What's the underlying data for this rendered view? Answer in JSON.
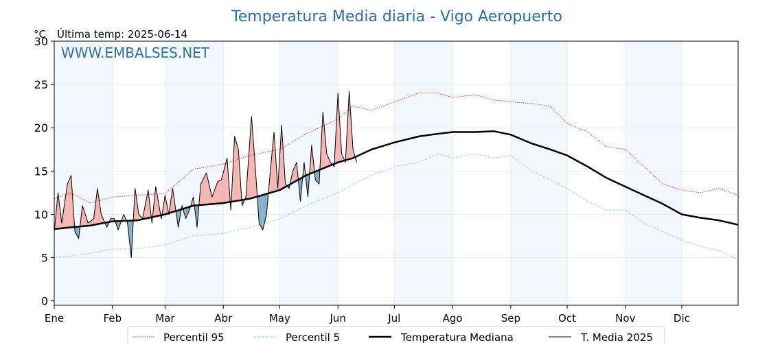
{
  "chart_data": {
    "type": "line",
    "title": "Temperatura Media diaria - Vigo Aeropuerto",
    "unit_label": "°C",
    "last_temp_label": "Última temp: 2025-06-14",
    "watermark": "WWW.EMBALSES.NET",
    "ylim": [
      -0.5,
      30
    ],
    "yticks": [
      0,
      5,
      10,
      15,
      20,
      25,
      30
    ],
    "xlim": [
      1,
      365
    ],
    "months": [
      {
        "label": "Ene",
        "day": 1
      },
      {
        "label": "Feb",
        "day": 32
      },
      {
        "label": "Mar",
        "day": 60
      },
      {
        "label": "Abr",
        "day": 91
      },
      {
        "label": "May",
        "day": 121
      },
      {
        "label": "Jun",
        "day": 152
      },
      {
        "label": "Jul",
        "day": 182
      },
      {
        "label": "Ago",
        "day": 213
      },
      {
        "label": "Sep",
        "day": 244
      },
      {
        "label": "Oct",
        "day": 274
      },
      {
        "label": "Nov",
        "day": 305
      },
      {
        "label": "Dic",
        "day": 335
      }
    ],
    "grid": true,
    "legend_position": "bottom",
    "series": [
      {
        "name": "Percentil 95",
        "color": "#e8322b",
        "style": "dotted",
        "x": [
          1,
          10,
          20,
          32,
          45,
          60,
          75,
          91,
          105,
          121,
          135,
          152,
          160,
          170,
          182,
          195,
          205,
          213,
          225,
          235,
          244,
          255,
          265,
          274,
          285,
          295,
          305,
          315,
          325,
          335,
          345,
          355,
          365
        ],
        "values": [
          11.8,
          12.5,
          11.3,
          12,
          12.2,
          12.4,
          15.2,
          15.8,
          16.8,
          17.5,
          19.3,
          21,
          22.5,
          22,
          23,
          24,
          24,
          23.5,
          23.8,
          23.2,
          23,
          22.8,
          22.5,
          20.5,
          19.5,
          17.8,
          17.5,
          15.5,
          13.5,
          12.8,
          12.5,
          13,
          12.2
        ]
      },
      {
        "name": "Percentil 5",
        "color": "#a8d4e4",
        "style": "dashed",
        "x": [
          1,
          10,
          20,
          32,
          45,
          60,
          75,
          91,
          105,
          121,
          135,
          152,
          160,
          170,
          182,
          195,
          205,
          213,
          225,
          235,
          244,
          255,
          265,
          274,
          285,
          295,
          305,
          315,
          325,
          335,
          345,
          355,
          365
        ],
        "values": [
          5,
          5.2,
          5.5,
          6,
          6,
          6.5,
          7.5,
          7.8,
          8.5,
          9.5,
          11,
          12.5,
          13.5,
          14.5,
          15.5,
          16,
          17,
          16.5,
          17,
          16.5,
          16.8,
          15,
          14,
          13,
          11.5,
          10.5,
          10.5,
          9,
          8,
          7,
          6.3,
          5.8,
          4.8
        ]
      },
      {
        "name": "Temperatura Mediana",
        "color": "#000000",
        "style": "solid-thick",
        "x": [
          1,
          10,
          20,
          32,
          45,
          60,
          75,
          91,
          105,
          121,
          135,
          152,
          160,
          170,
          182,
          195,
          205,
          213,
          225,
          235,
          244,
          255,
          265,
          274,
          285,
          295,
          305,
          315,
          325,
          335,
          345,
          355,
          365
        ],
        "values": [
          8.3,
          8.5,
          8.7,
          9.2,
          9.3,
          10,
          11,
          11.3,
          11.8,
          12.8,
          14.5,
          16,
          16.5,
          17.5,
          18.3,
          19,
          19.3,
          19.5,
          19.5,
          19.6,
          19.2,
          18.2,
          17.5,
          16.8,
          15.5,
          14.2,
          13.2,
          12.2,
          11.2,
          10,
          9.6,
          9.3,
          8.8
        ]
      },
      {
        "name": "T. Media 2025",
        "color": "#000000",
        "style": "solid-thin",
        "x": [
          1,
          3,
          5,
          8,
          10,
          12,
          14,
          16,
          19,
          22,
          24,
          26,
          29,
          31,
          33,
          35,
          38,
          40,
          42,
          44,
          46,
          48,
          51,
          53,
          55,
          58,
          60,
          62,
          64,
          67,
          69,
          71,
          73,
          75,
          77,
          79,
          82,
          85,
          88,
          90,
          93,
          95,
          97,
          99,
          101,
          103,
          106,
          108,
          110,
          112,
          114,
          116,
          118,
          120,
          122,
          124,
          126,
          128,
          130,
          132,
          134,
          136,
          138,
          140,
          142,
          144,
          146,
          148,
          150,
          152,
          154,
          156,
          158,
          160,
          162
        ],
        "values": [
          8,
          12.5,
          9,
          13.5,
          14.5,
          8,
          7.2,
          11,
          9,
          9.5,
          13,
          10,
          8.5,
          9.5,
          9.5,
          8.2,
          10,
          9,
          5,
          13,
          10,
          9.5,
          12.8,
          9,
          13.2,
          9.5,
          12.2,
          10,
          13,
          8.5,
          11,
          9.5,
          10.5,
          12,
          8.5,
          13.5,
          14.8,
          12,
          13.8,
          14,
          16.5,
          10.5,
          19,
          17.5,
          11,
          12,
          21.3,
          15.5,
          9,
          8.2,
          10,
          15,
          19.5,
          13,
          20.3,
          13.5,
          13,
          15,
          16,
          11.5,
          16,
          12,
          18,
          14,
          13.5,
          21.8,
          17,
          16,
          15.5,
          24,
          17,
          16,
          24.2,
          17.5,
          16
        ]
      }
    ]
  }
}
